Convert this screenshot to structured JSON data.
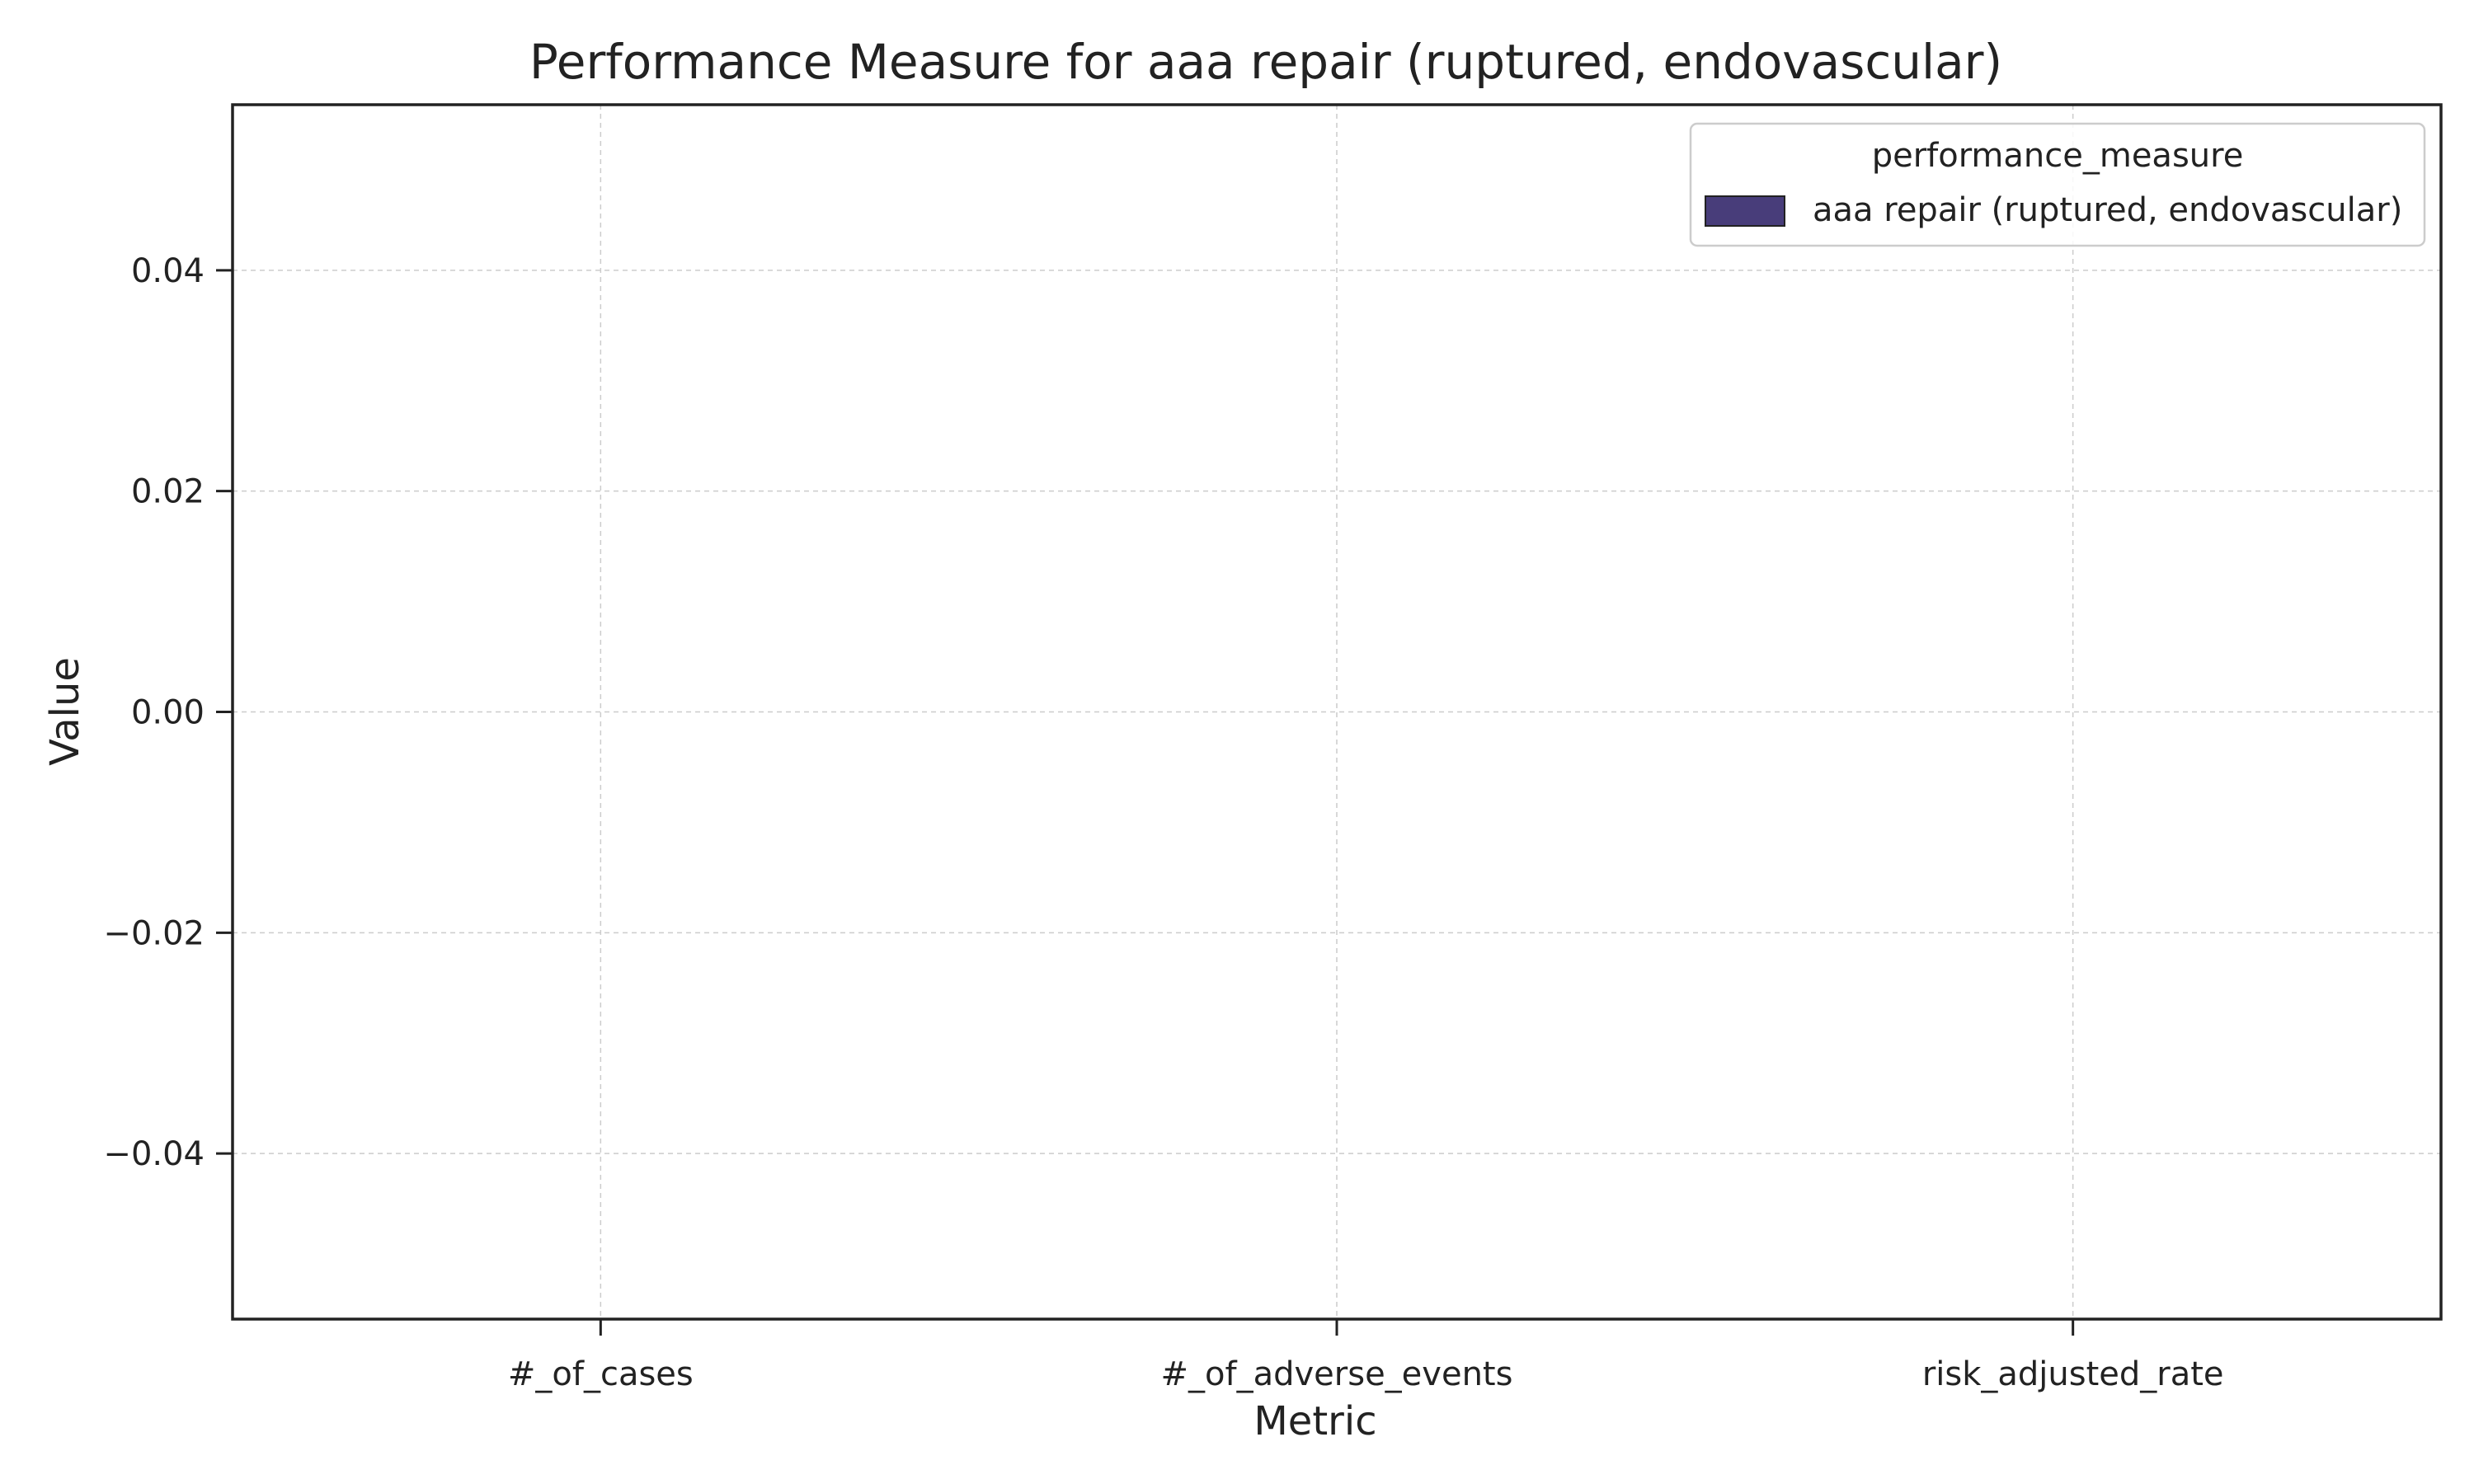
{
  "chart_data": {
    "type": "bar",
    "title": "Performance Measure for aaa repair (ruptured, endovascular)",
    "xlabel": "Metric",
    "ylabel": "Value",
    "categories": [
      "#_of_cases",
      "#_of_adverse_events",
      "risk_adjusted_rate"
    ],
    "series": [
      {
        "name": "aaa repair (ruptured, endovascular)",
        "values": [
          0,
          0,
          0
        ],
        "color": "#483d7a"
      }
    ],
    "ylim": [
      -0.055,
      0.055
    ],
    "yticks": [
      -0.04,
      -0.02,
      0.0,
      0.02,
      0.04
    ],
    "ytick_labels": [
      "−0.04",
      "−0.02",
      "0.00",
      "0.02",
      "0.04"
    ],
    "grid": true,
    "legend": {
      "title": "performance_measure",
      "position": "top-right"
    }
  }
}
